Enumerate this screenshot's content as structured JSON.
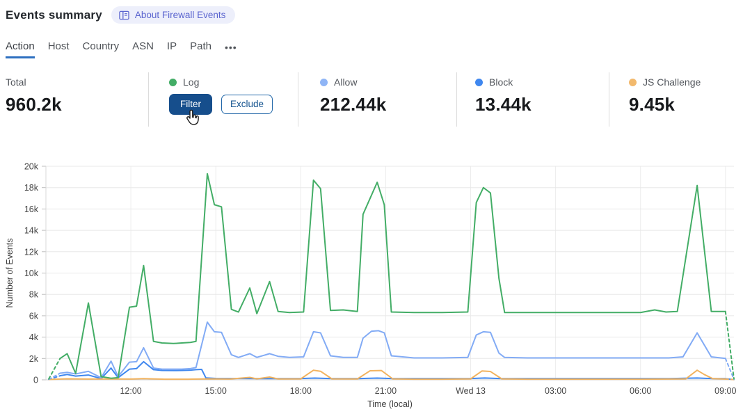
{
  "header": {
    "title": "Events summary",
    "about_badge_label": "About Firewall Events"
  },
  "tabs": {
    "items": [
      {
        "label": "Action",
        "active": true
      },
      {
        "label": "Host",
        "active": false
      },
      {
        "label": "Country",
        "active": false
      },
      {
        "label": "ASN",
        "active": false
      },
      {
        "label": "IP",
        "active": false
      },
      {
        "label": "Path",
        "active": false
      }
    ],
    "more_label": "•••"
  },
  "stats": {
    "total": {
      "label": "Total",
      "value": "960.2k"
    },
    "log": {
      "label": "Log",
      "color": "#43ad66",
      "filter_label": "Filter",
      "exclude_label": "Exclude"
    },
    "allow": {
      "label": "Allow",
      "value": "212.44k",
      "color": "#8fb5f6"
    },
    "block": {
      "label": "Block",
      "value": "13.44k",
      "color": "#3f87ef"
    },
    "js_challenge": {
      "label": "JS Challenge",
      "value": "9.45k",
      "color": "#f2b96d"
    }
  },
  "chart_data": {
    "type": "line",
    "xlabel": "Time (local)",
    "ylabel": "Number of Events",
    "grid": true,
    "legend_position": "none (stats row above acts as legend)",
    "x_unit": "hours since 09:00 Tue, through 09:00 Wed 13",
    "xlim": [
      0,
      24.3
    ],
    "ylim": [
      0,
      20000
    ],
    "x_ticks": [
      {
        "t": 3,
        "label": "12:00"
      },
      {
        "t": 6,
        "label": "15:00"
      },
      {
        "t": 9,
        "label": "18:00"
      },
      {
        "t": 12,
        "label": "21:00"
      },
      {
        "t": 15,
        "label": "Wed 13"
      },
      {
        "t": 18,
        "label": "03:00"
      },
      {
        "t": 21,
        "label": "06:00"
      },
      {
        "t": 24,
        "label": "09:00"
      }
    ],
    "y_ticks": [
      {
        "v": 0,
        "label": "0"
      },
      {
        "v": 2000,
        "label": "2k"
      },
      {
        "v": 4000,
        "label": "4k"
      },
      {
        "v": 6000,
        "label": "6k"
      },
      {
        "v": 8000,
        "label": "8k"
      },
      {
        "v": 10000,
        "label": "10k"
      },
      {
        "v": 12000,
        "label": "12k"
      },
      {
        "v": 14000,
        "label": "14k"
      },
      {
        "v": 16000,
        "label": "16k"
      },
      {
        "v": 18000,
        "label": "18k"
      },
      {
        "v": 20000,
        "label": "20k"
      }
    ],
    "series": [
      {
        "name": "Block",
        "color": "#3f87ef",
        "dash_head": 1,
        "dash_tail": 0,
        "points": [
          [
            0.1,
            30
          ],
          [
            0.5,
            380
          ],
          [
            0.75,
            500
          ],
          [
            1.05,
            350
          ],
          [
            1.5,
            450
          ],
          [
            1.95,
            120
          ],
          [
            2.3,
            1100
          ],
          [
            2.55,
            200
          ],
          [
            2.95,
            1000
          ],
          [
            3.2,
            1050
          ],
          [
            3.45,
            1700
          ],
          [
            3.8,
            950
          ],
          [
            4.1,
            880
          ],
          [
            4.5,
            870
          ],
          [
            4.8,
            880
          ],
          [
            5.1,
            900
          ],
          [
            5.3,
            950
          ],
          [
            5.5,
            980
          ],
          [
            5.65,
            180
          ],
          [
            6,
            130
          ],
          [
            7,
            120
          ],
          [
            8,
            110
          ],
          [
            9,
            120
          ],
          [
            9.5,
            160
          ],
          [
            10,
            120
          ],
          [
            11,
            110
          ],
          [
            11.7,
            160
          ],
          [
            12.2,
            120
          ],
          [
            13,
            110
          ],
          [
            14,
            110
          ],
          [
            15,
            120
          ],
          [
            15.5,
            170
          ],
          [
            16,
            120
          ],
          [
            17,
            110
          ],
          [
            18,
            110
          ],
          [
            19,
            110
          ],
          [
            20,
            110
          ],
          [
            21,
            110
          ],
          [
            22,
            110
          ],
          [
            23,
            170
          ],
          [
            23.5,
            120
          ],
          [
            24,
            110
          ],
          [
            24.3,
            20
          ]
        ]
      },
      {
        "name": "JS Challenge",
        "color": "#f2b35f",
        "dash_head": 0,
        "dash_tail": 1,
        "points": [
          [
            0.1,
            30
          ],
          [
            0.75,
            100
          ],
          [
            1.5,
            70
          ],
          [
            2.3,
            80
          ],
          [
            3,
            70
          ],
          [
            3.45,
            110
          ],
          [
            4.2,
            60
          ],
          [
            5,
            60
          ],
          [
            5.7,
            90
          ],
          [
            6.5,
            70
          ],
          [
            7.2,
            230
          ],
          [
            7.45,
            90
          ],
          [
            7.9,
            260
          ],
          [
            8.2,
            80
          ],
          [
            9,
            90
          ],
          [
            9.45,
            900
          ],
          [
            9.7,
            800
          ],
          [
            10.1,
            90
          ],
          [
            11,
            80
          ],
          [
            11.45,
            850
          ],
          [
            11.85,
            870
          ],
          [
            12.25,
            90
          ],
          [
            13,
            60
          ],
          [
            14,
            60
          ],
          [
            15,
            90
          ],
          [
            15.4,
            830
          ],
          [
            15.7,
            780
          ],
          [
            16.1,
            90
          ],
          [
            17,
            60
          ],
          [
            18,
            60
          ],
          [
            19,
            60
          ],
          [
            20,
            60
          ],
          [
            21,
            60
          ],
          [
            22,
            70
          ],
          [
            22.6,
            90
          ],
          [
            23,
            900
          ],
          [
            23.25,
            500
          ],
          [
            23.55,
            110
          ],
          [
            24,
            70
          ],
          [
            24.3,
            20
          ]
        ]
      },
      {
        "name": "Allow",
        "color": "#82abf5",
        "dash_head": 1,
        "dash_tail": 1,
        "points": [
          [
            0.1,
            40
          ],
          [
            0.5,
            620
          ],
          [
            0.75,
            700
          ],
          [
            1.05,
            550
          ],
          [
            1.5,
            800
          ],
          [
            1.95,
            200
          ],
          [
            2.3,
            1750
          ],
          [
            2.55,
            300
          ],
          [
            2.95,
            1650
          ],
          [
            3.2,
            1700
          ],
          [
            3.45,
            3000
          ],
          [
            3.8,
            1100
          ],
          [
            4.1,
            1000
          ],
          [
            4.5,
            1000
          ],
          [
            4.8,
            1000
          ],
          [
            5.1,
            1050
          ],
          [
            5.3,
            1150
          ],
          [
            5.7,
            5400
          ],
          [
            5.95,
            4500
          ],
          [
            6.2,
            4450
          ],
          [
            6.55,
            2350
          ],
          [
            6.8,
            2100
          ],
          [
            7.2,
            2450
          ],
          [
            7.45,
            2100
          ],
          [
            7.9,
            2450
          ],
          [
            8.2,
            2200
          ],
          [
            8.6,
            2100
          ],
          [
            9.1,
            2150
          ],
          [
            9.45,
            4500
          ],
          [
            9.7,
            4400
          ],
          [
            10.05,
            2250
          ],
          [
            10.5,
            2100
          ],
          [
            11,
            2100
          ],
          [
            11.2,
            3900
          ],
          [
            11.5,
            4550
          ],
          [
            11.75,
            4600
          ],
          [
            11.95,
            4400
          ],
          [
            12.2,
            2250
          ],
          [
            13,
            2050
          ],
          [
            14,
            2050
          ],
          [
            14.9,
            2100
          ],
          [
            15.2,
            4200
          ],
          [
            15.45,
            4500
          ],
          [
            15.7,
            4450
          ],
          [
            16,
            2500
          ],
          [
            16.2,
            2100
          ],
          [
            17,
            2050
          ],
          [
            18,
            2050
          ],
          [
            19,
            2050
          ],
          [
            20,
            2050
          ],
          [
            21,
            2050
          ],
          [
            22,
            2050
          ],
          [
            22.5,
            2150
          ],
          [
            23,
            4400
          ],
          [
            23.5,
            2150
          ],
          [
            24,
            2000
          ],
          [
            24.3,
            50
          ]
        ]
      },
      {
        "name": "Log",
        "color": "#43ad66",
        "dash_head": 1,
        "dash_tail": 1,
        "points": [
          [
            0.1,
            80
          ],
          [
            0.5,
            2000
          ],
          [
            0.75,
            2450
          ],
          [
            1.05,
            600
          ],
          [
            1.5,
            7200
          ],
          [
            1.95,
            300
          ],
          [
            2.3,
            150
          ],
          [
            2.55,
            200
          ],
          [
            2.95,
            6800
          ],
          [
            3.2,
            6900
          ],
          [
            3.45,
            10700
          ],
          [
            3.8,
            3600
          ],
          [
            4.1,
            3450
          ],
          [
            4.5,
            3400
          ],
          [
            4.8,
            3450
          ],
          [
            5.1,
            3500
          ],
          [
            5.3,
            3600
          ],
          [
            5.7,
            19300
          ],
          [
            5.95,
            16400
          ],
          [
            6.2,
            16200
          ],
          [
            6.55,
            6600
          ],
          [
            6.8,
            6350
          ],
          [
            7.2,
            8600
          ],
          [
            7.45,
            6200
          ],
          [
            7.9,
            9200
          ],
          [
            8.2,
            6400
          ],
          [
            8.6,
            6300
          ],
          [
            9.1,
            6350
          ],
          [
            9.45,
            18700
          ],
          [
            9.7,
            17900
          ],
          [
            10.05,
            6500
          ],
          [
            10.5,
            6550
          ],
          [
            11,
            6400
          ],
          [
            11.2,
            15500
          ],
          [
            11.7,
            18500
          ],
          [
            11.95,
            16400
          ],
          [
            12.2,
            6350
          ],
          [
            13,
            6300
          ],
          [
            14,
            6300
          ],
          [
            14.9,
            6350
          ],
          [
            15.2,
            16600
          ],
          [
            15.45,
            18000
          ],
          [
            15.7,
            17500
          ],
          [
            16,
            9500
          ],
          [
            16.2,
            6300
          ],
          [
            17,
            6300
          ],
          [
            18,
            6300
          ],
          [
            19,
            6300
          ],
          [
            20,
            6300
          ],
          [
            21,
            6300
          ],
          [
            21.5,
            6550
          ],
          [
            21.9,
            6350
          ],
          [
            22.3,
            6400
          ],
          [
            23,
            18200
          ],
          [
            23.5,
            6400
          ],
          [
            24,
            6400
          ],
          [
            24.3,
            100
          ]
        ]
      }
    ]
  }
}
